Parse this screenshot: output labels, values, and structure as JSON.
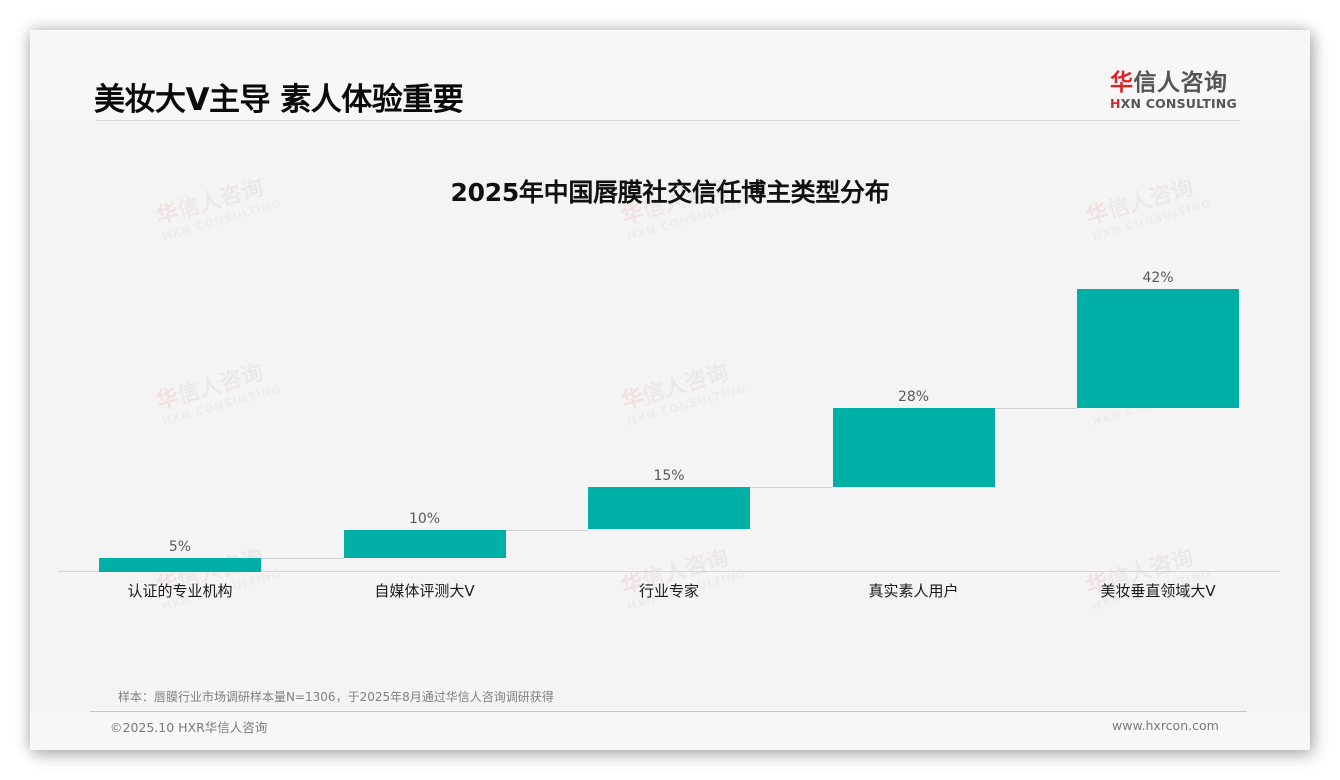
{
  "header": {
    "title": "美妆大V主导 素人体验重要",
    "logo": {
      "cn_accent": "华",
      "cn_rest": "信人咨询",
      "en_accent": "H",
      "en_rest": "XN CONSULTING"
    }
  },
  "watermark": {
    "cn_accent": "华",
    "cn_rest": "信人咨询",
    "en": "HXN CONSULTING"
  },
  "colors": {
    "bar": "#00b0a7",
    "logo_red": "#d7262b",
    "background": "#f4f4f4"
  },
  "chart_data": {
    "type": "bar",
    "subtype": "waterfall",
    "title": "2025年中国唇膜社交信任博主类型分布",
    "categories": [
      "认证的专业机构",
      "自媒体评测大V",
      "行业专家",
      "真实素人用户",
      "美妆垂直领域大V"
    ],
    "values": [
      5,
      10,
      15,
      28,
      42
    ],
    "value_labels": [
      "5%",
      "10%",
      "15%",
      "28%",
      "42%"
    ],
    "cumulative": [
      5,
      15,
      30,
      58,
      100
    ],
    "xlabel": "",
    "ylabel": "",
    "ylim": [
      0,
      100
    ],
    "grid": false,
    "legend": "none",
    "unit": "%"
  },
  "footer": {
    "note": "样本：唇膜行业市场调研样本量N=1306，于2025年8月通过华信人咨询调研获得",
    "copyright": "©2025.10 HXR华信人咨询",
    "website": "www.hxrcon.com"
  }
}
